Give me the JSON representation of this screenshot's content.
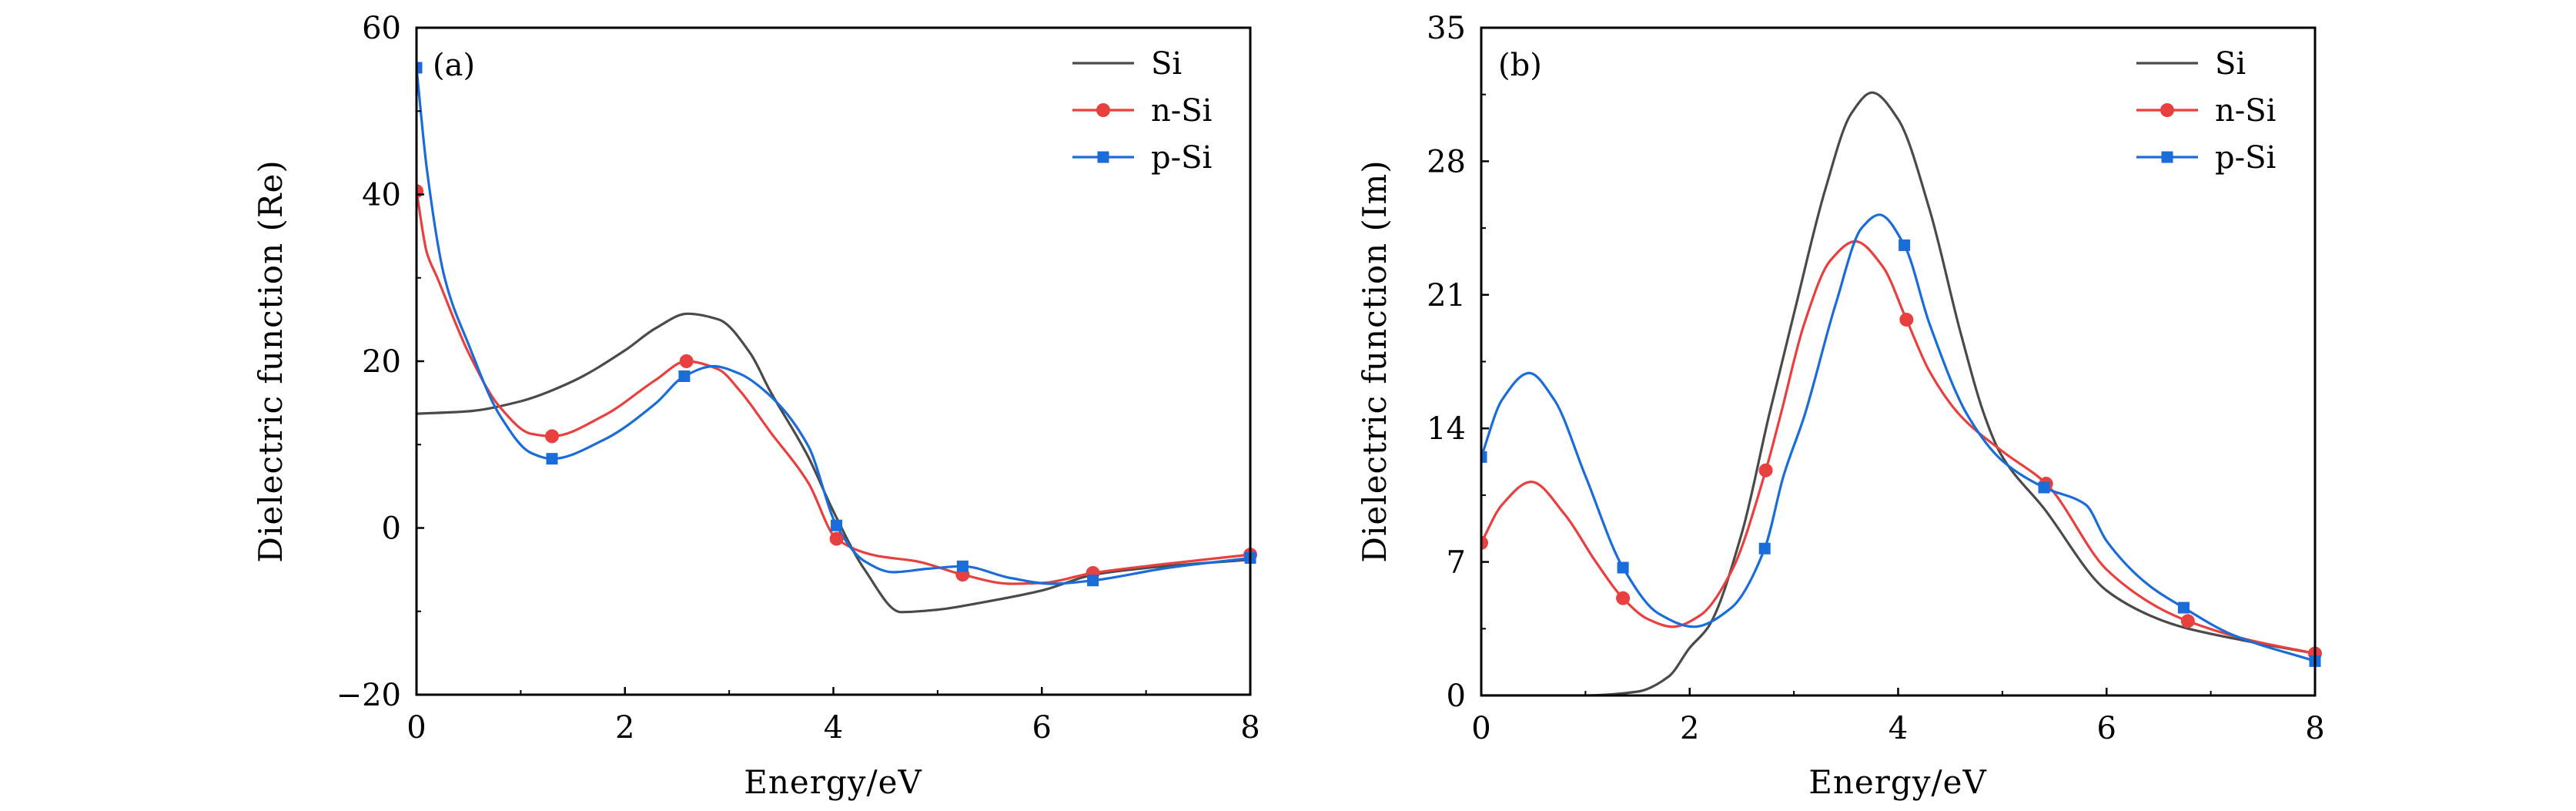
{
  "chart_data": [
    {
      "type": "line",
      "panel_label": "(a)",
      "title": "",
      "xlabel": "Energy/eV",
      "ylabel": "Dielectric function (Re)",
      "xlim": [
        0,
        8
      ],
      "ylim": [
        -20,
        60
      ],
      "xticks": [
        0,
        2,
        4,
        6,
        8
      ],
      "xtick_labels": [
        "0",
        "2",
        "4",
        "6",
        "8"
      ],
      "yticks": [
        -20,
        0,
        20,
        40,
        60
      ],
      "ytick_labels": [
        "−20",
        "0",
        "20",
        "40",
        "60"
      ],
      "grid": false,
      "legend_position": "top-right",
      "series": [
        {
          "name": "Si",
          "color": "#4a4a4a",
          "marker": "none",
          "x": [
            0,
            0.5,
            1.0,
            1.5,
            2.0,
            2.3,
            2.6,
            2.9,
            3.2,
            3.39,
            3.76,
            4.0,
            4.3,
            4.65,
            5.0,
            5.4,
            6.0,
            6.5,
            7.0,
            8.0
          ],
          "y": [
            13.7,
            14.0,
            15.2,
            17.6,
            21.3,
            24.0,
            25.7,
            25.0,
            21.0,
            16.5,
            8.5,
            2.0,
            -5.0,
            -10.1,
            -9.8,
            -9.0,
            -7.5,
            -5.6,
            -4.8,
            -3.8
          ],
          "marker_x": [],
          "marker_y": []
        },
        {
          "name": "n-Si",
          "color": "#e8403f",
          "marker": "circle",
          "x": [
            0,
            0.1,
            0.2,
            0.5,
            0.8,
            1.1,
            1.3,
            1.8,
            2.3,
            2.59,
            2.9,
            3.1,
            3.39,
            3.76,
            4.03,
            4.4,
            4.8,
            5.24,
            5.7,
            6.0,
            6.49,
            7.2,
            8.0
          ],
          "y": [
            40.4,
            33.0,
            30.0,
            21.0,
            14.5,
            11.3,
            11.0,
            13.5,
            17.8,
            20.0,
            19.0,
            16.5,
            11.6,
            5.4,
            -1.3,
            -3.3,
            -4.0,
            -5.6,
            -6.7,
            -6.6,
            -5.4,
            -4.3,
            -3.2
          ],
          "marker_x": [
            0,
            1.3,
            2.59,
            4.03,
            5.24,
            6.49,
            8.0
          ],
          "marker_y": [
            40.4,
            11.0,
            20.0,
            -1.3,
            -5.6,
            -5.4,
            -3.2
          ]
        },
        {
          "name": "p-Si",
          "color": "#1a6cd9",
          "marker": "square",
          "x": [
            0,
            0.1,
            0.27,
            0.5,
            0.8,
            1.1,
            1.3,
            1.8,
            2.3,
            2.57,
            2.85,
            3.1,
            3.39,
            3.76,
            4.03,
            4.3,
            4.57,
            4.9,
            5.24,
            5.7,
            6.1,
            6.49,
            7.2,
            8.0
          ],
          "y": [
            55.2,
            43.0,
            30.0,
            22.0,
            13.5,
            9.0,
            8.3,
            10.6,
            15.0,
            18.2,
            19.4,
            18.5,
            15.9,
            9.8,
            0.3,
            -4.0,
            -5.3,
            -4.9,
            -4.6,
            -6.0,
            -6.7,
            -6.3,
            -4.8,
            -3.6
          ],
          "marker_x": [
            0,
            1.3,
            2.57,
            4.03,
            5.24,
            6.49,
            8.0
          ],
          "marker_y": [
            55.2,
            8.3,
            18.2,
            0.3,
            -4.6,
            -6.3,
            -3.6
          ]
        }
      ]
    },
    {
      "type": "line",
      "panel_label": "(b)",
      "title": "",
      "xlabel": "Energy/eV",
      "ylabel": "Dielectric function (Im)",
      "xlim": [
        0,
        8
      ],
      "ylim": [
        0,
        35
      ],
      "xticks": [
        0,
        2,
        4,
        6,
        8
      ],
      "xtick_labels": [
        "0",
        "2",
        "4",
        "6",
        "8"
      ],
      "yticks": [
        0,
        7,
        14,
        21,
        28,
        35
      ],
      "ytick_labels": [
        "0",
        "7",
        "14",
        "21",
        "28",
        "35"
      ],
      "grid": false,
      "legend_position": "top-right",
      "series": [
        {
          "name": "Si",
          "color": "#4a4a4a",
          "marker": "none",
          "x": [
            0,
            1.0,
            1.5,
            1.8,
            2.0,
            2.18,
            2.5,
            2.76,
            3.0,
            3.3,
            3.55,
            3.75,
            4.0,
            4.3,
            4.6,
            4.83,
            4.98,
            5.4,
            6.0,
            6.5,
            6.75,
            7.3,
            8.0
          ],
          "y": [
            0,
            0,
            0.2,
            1.0,
            2.5,
            3.6,
            8.5,
            14.65,
            20.0,
            26.5,
            30.5,
            31.6,
            30.2,
            25.5,
            19.0,
            14.65,
            12.7,
            9.8,
            5.5,
            4.0,
            3.55,
            2.9,
            2.2
          ],
          "marker_x": [],
          "marker_y": []
        },
        {
          "name": "n-Si",
          "color": "#e8403f",
          "marker": "circle",
          "x": [
            0,
            0.2,
            0.48,
            0.8,
            1.1,
            1.36,
            1.6,
            1.84,
            2.1,
            2.4,
            2.73,
            2.87,
            3.1,
            3.35,
            3.59,
            3.85,
            4.08,
            4.3,
            4.6,
            5.0,
            5.42,
            6.0,
            6.5,
            6.78,
            7.3,
            8.0
          ],
          "y": [
            8.0,
            10.0,
            11.2,
            9.5,
            7.0,
            5.1,
            4.0,
            3.6,
            4.2,
            6.5,
            11.8,
            14.65,
            19.5,
            22.8,
            23.8,
            22.5,
            19.7,
            17.0,
            14.65,
            12.8,
            11.1,
            6.6,
            4.6,
            3.9,
            3.0,
            2.2
          ],
          "marker_x": [
            0,
            1.36,
            2.73,
            4.08,
            5.42,
            6.78,
            8.0
          ],
          "marker_y": [
            8.0,
            5.1,
            11.8,
            19.7,
            11.1,
            3.9,
            2.2
          ]
        },
        {
          "name": "p-Si",
          "color": "#1a6cd9",
          "marker": "square",
          "x": [
            0,
            0.2,
            0.46,
            0.7,
            1.0,
            1.36,
            1.7,
            2.04,
            2.4,
            2.72,
            2.9,
            3.1,
            3.4,
            3.65,
            3.82,
            4.06,
            4.3,
            4.67,
            5.0,
            5.4,
            5.8,
            6.0,
            6.4,
            6.74,
            7.2,
            8.0
          ],
          "y": [
            12.5,
            15.5,
            16.9,
            15.5,
            11.5,
            6.7,
            4.3,
            3.6,
            4.6,
            7.7,
            11.5,
            14.65,
            20.5,
            24.5,
            25.2,
            23.6,
            19.5,
            14.65,
            12.3,
            10.9,
            10.0,
            8.1,
            5.8,
            4.6,
            3.2,
            1.8
          ],
          "marker_x": [
            0,
            1.36,
            2.72,
            4.06,
            5.4,
            6.74,
            8.0
          ],
          "marker_y": [
            12.5,
            6.7,
            7.7,
            23.6,
            10.9,
            4.6,
            1.8
          ]
        }
      ]
    }
  ]
}
